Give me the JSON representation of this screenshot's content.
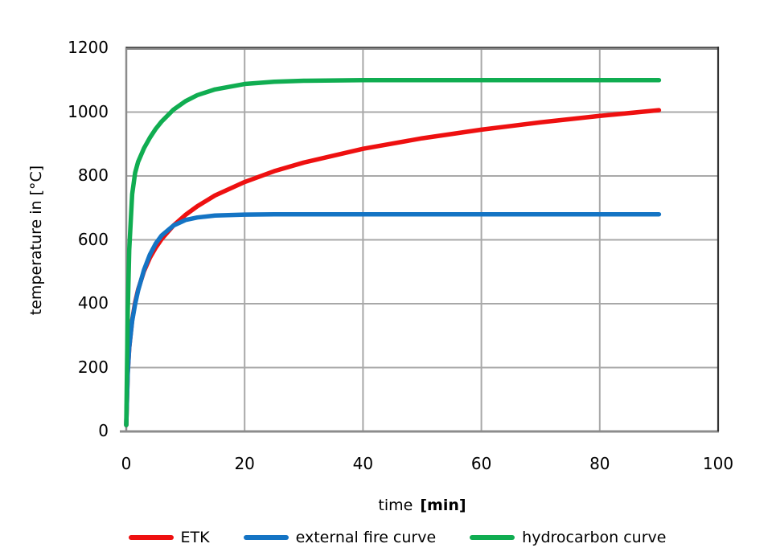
{
  "chart_data": {
    "type": "line",
    "title": "",
    "xlabel": "time",
    "xlabel_unit": "[min]",
    "ylabel": "temperature in [°C]",
    "xlim": [
      0,
      100
    ],
    "ylim": [
      0,
      1200
    ],
    "xticks": [
      0,
      20,
      40,
      60,
      80,
      100
    ],
    "yticks": [
      0,
      200,
      400,
      600,
      800,
      1000,
      1200
    ],
    "grid": true,
    "legend_position": "bottom",
    "x": [
      0,
      0.25,
      0.5,
      1,
      1.5,
      2,
      3,
      4,
      5,
      6,
      8,
      10,
      12,
      15,
      20,
      25,
      30,
      40,
      50,
      60,
      70,
      80,
      90
    ],
    "series": [
      {
        "name": "ETK",
        "color": "#ee1010",
        "values": [
          20,
          185,
          261,
          349,
          404,
          444,
          502,
          544,
          576,
          603,
          645,
          678,
          705,
          739,
          781,
          815,
          842,
          885,
          918,
          945,
          968,
          988,
          1006
        ]
      },
      {
        "name": "external fire curve",
        "color": "#1474c4",
        "values": [
          20,
          182,
          263,
          346,
          399,
          441,
          506,
          554,
          589,
          614,
          645,
          662,
          670,
          676,
          679,
          680,
          680,
          680,
          680,
          680,
          680,
          680,
          680
        ]
      },
      {
        "name": "hydrocarbon curve",
        "color": "#10ad51",
        "values": [
          20,
          373,
          568,
          743,
          810,
          844,
          887,
          920,
          948,
          971,
          1008,
          1034,
          1053,
          1071,
          1088,
          1095,
          1098,
          1100,
          1100,
          1100,
          1100,
          1100,
          1100
        ]
      }
    ],
    "colors": {
      "grid": "#a8a8a8",
      "axis_border": "#8c8c8c",
      "axis_border_dark": "#333333",
      "background": "#ffffff",
      "text": "#000000"
    }
  }
}
